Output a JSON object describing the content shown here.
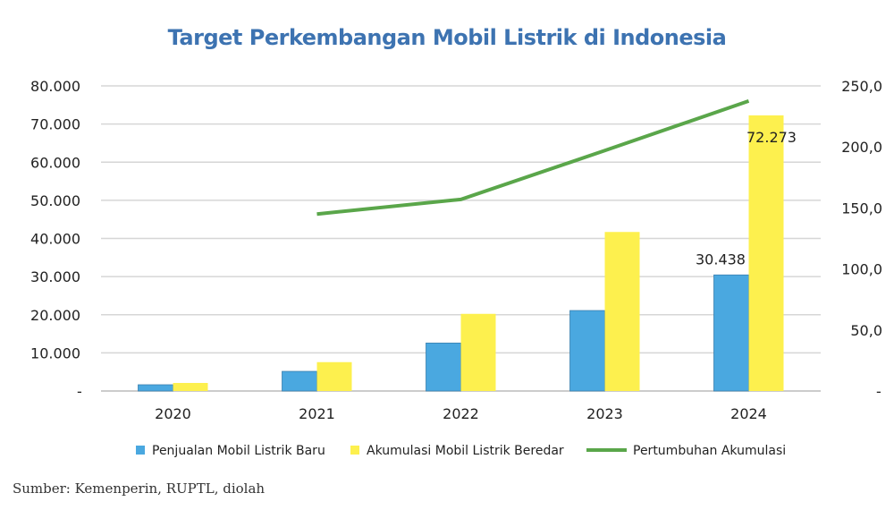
{
  "chart_data": {
    "type": "bar",
    "title": "Target Perkembangan Mobil Listrik di Indonesia",
    "categories": [
      "2020",
      "2021",
      "2022",
      "2023",
      "2024"
    ],
    "series": [
      {
        "name": "Penjualan Mobil Listrik Baru",
        "type": "bar",
        "axis": "left",
        "color": "#4aa8e0",
        "values": [
          1640,
          5150,
          12580,
          21100,
          30438
        ]
      },
      {
        "name": "Akumulasi Mobil Listrik Beredar",
        "type": "bar",
        "axis": "left",
        "color": "#fdf04e",
        "values": [
          2110,
          7570,
          20230,
          41700,
          72273
        ]
      },
      {
        "name": "Pertumbuhan Akumulasi",
        "type": "line",
        "axis": "right",
        "color": "#5aa64a",
        "values": [
          null,
          145,
          157,
          197,
          237.6
        ]
      }
    ],
    "data_labels": [
      {
        "series": 0,
        "index": 4,
        "text": "30.438"
      },
      {
        "series": 1,
        "index": 4,
        "text": "72.273"
      }
    ],
    "y_left": {
      "ylim": [
        0,
        80000
      ],
      "ticks": [
        "-",
        "10.000",
        "20.000",
        "30.000",
        "40.000",
        "50.000",
        "60.000",
        "70.000",
        "80.000"
      ]
    },
    "y_right": {
      "ylim": [
        0,
        250
      ],
      "ticks": [
        "-",
        "50,0",
        "100,0",
        "150,0",
        "200,0",
        "250,0"
      ]
    },
    "grid": true,
    "legend": "bottom"
  },
  "source": "Sumber: Kemenperin, RUPTL, diolah"
}
